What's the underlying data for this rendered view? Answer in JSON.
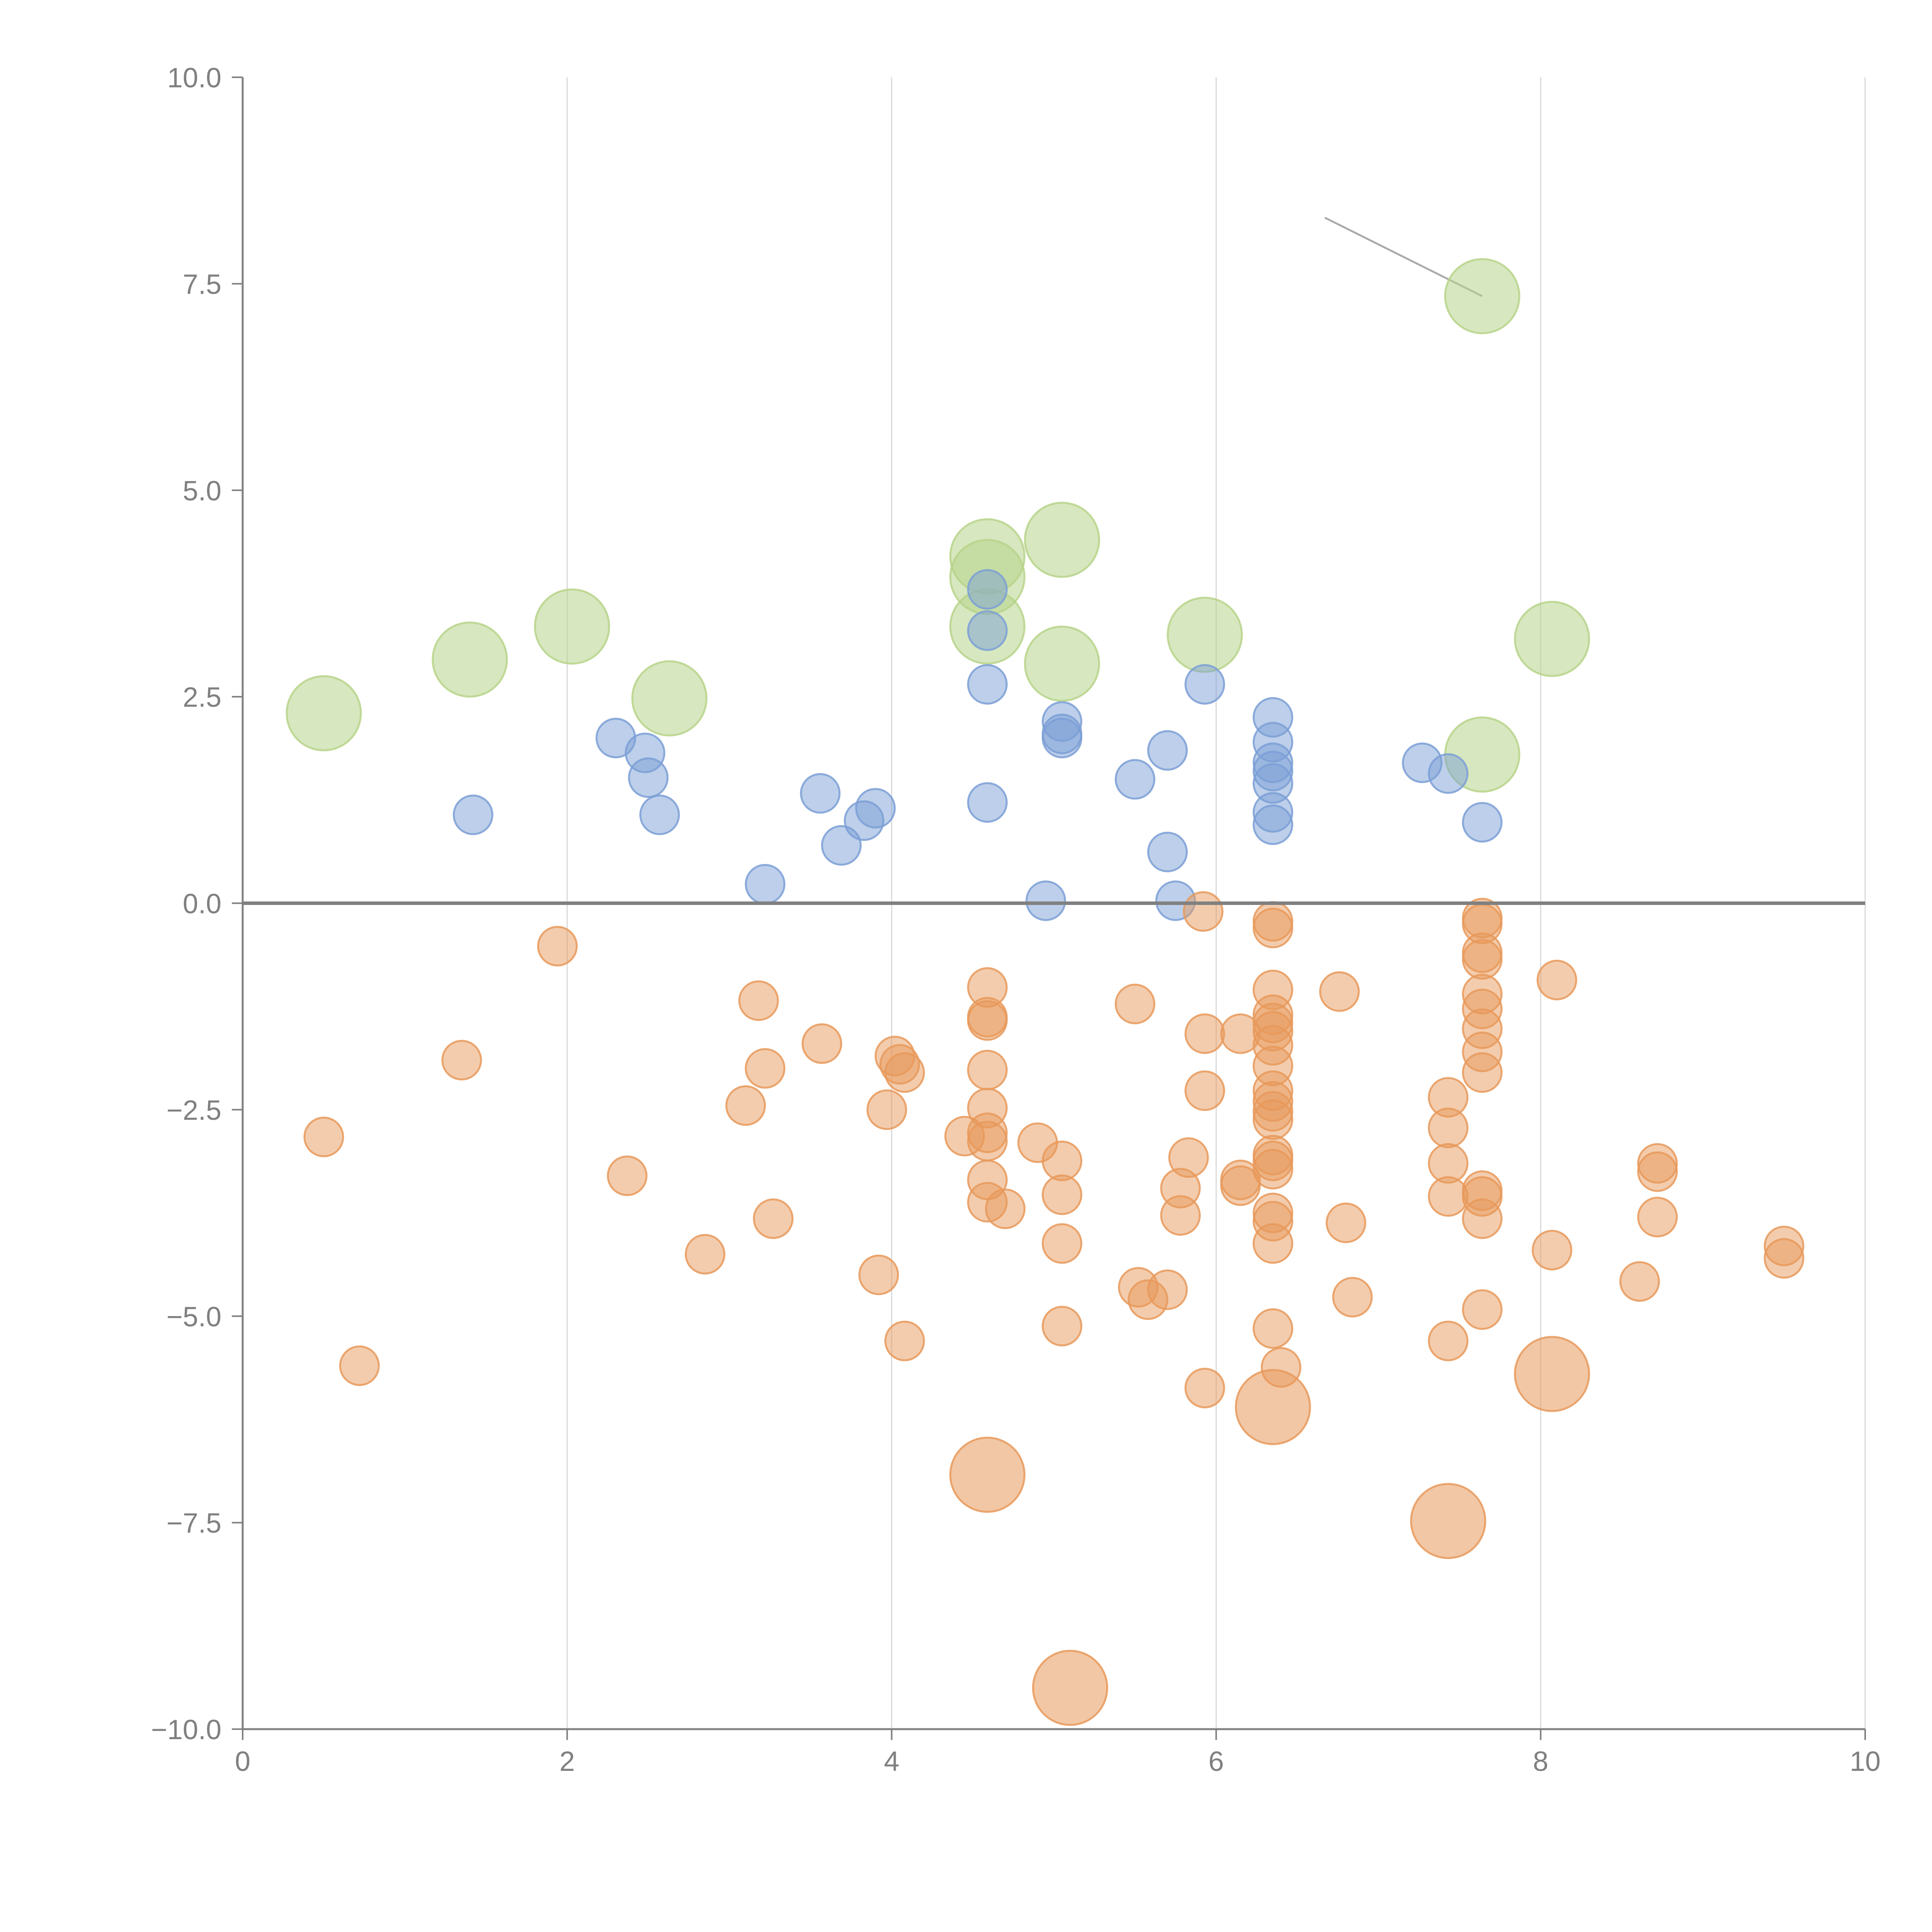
{
  "colors": {
    "positive": "#7b9fd6",
    "negative": "#e8995b",
    "highlight": "#b7d38a",
    "grid": "#d9d9d9",
    "axis": "#808080",
    "leader": "#aaaaaa"
  },
  "chart_data": {
    "type": "scatter",
    "title": "",
    "xlabel": "",
    "ylabel": "",
    "xlim": [
      0,
      10
    ],
    "ylim": [
      -10,
      10
    ],
    "grid": "vertical",
    "legend": "none",
    "reference_line": {
      "axis": "y",
      "value": 0
    },
    "x_ticks": [
      {
        "value": 0,
        "label": "0"
      },
      {
        "value": 2,
        "label": "2"
      },
      {
        "value": 4,
        "label": "4"
      },
      {
        "value": 6,
        "label": "6"
      },
      {
        "value": 8,
        "label": "8"
      },
      {
        "value": 10,
        "label": "10"
      }
    ],
    "y_ticks": [
      {
        "value": 10,
        "label": "10.0"
      },
      {
        "value": 7.5,
        "label": "7.5"
      },
      {
        "value": 5,
        "label": "5.0"
      },
      {
        "value": 2.5,
        "label": "2.5"
      },
      {
        "value": 0,
        "label": "0.0"
      },
      {
        "value": -2.5,
        "label": "−2.5"
      },
      {
        "value": -5,
        "label": "−5.0"
      },
      {
        "value": -7.5,
        "label": "−7.5"
      },
      {
        "value": -10,
        "label": "−10.0"
      }
    ],
    "series": [
      {
        "name": "highlighted",
        "color_key": "highlight",
        "size": "large",
        "points": [
          [
            0.5,
            2.3
          ],
          [
            1.4,
            2.95
          ],
          [
            2.03,
            3.35
          ],
          [
            2.63,
            2.48
          ],
          [
            4.59,
            3.95
          ],
          [
            4.59,
            3.35
          ],
          [
            4.59,
            4.2
          ],
          [
            5.05,
            4.4
          ],
          [
            5.05,
            2.9
          ],
          [
            5.93,
            3.25
          ],
          [
            7.64,
            7.35
          ],
          [
            7.64,
            1.8
          ],
          [
            8.07,
            3.2
          ]
        ]
      },
      {
        "name": "positive",
        "color_key": "positive",
        "size": "small",
        "points": [
          [
            1.42,
            1.07
          ],
          [
            2.3,
            2.0
          ],
          [
            2.48,
            1.82
          ],
          [
            2.5,
            1.52
          ],
          [
            2.57,
            1.07
          ],
          [
            3.22,
            0.23
          ],
          [
            3.56,
            1.33
          ],
          [
            3.69,
            0.7
          ],
          [
            3.83,
            1.0
          ],
          [
            3.9,
            1.15
          ],
          [
            4.59,
            3.8
          ],
          [
            4.59,
            3.3
          ],
          [
            4.59,
            2.65
          ],
          [
            4.59,
            1.22
          ],
          [
            4.95,
            0.03
          ],
          [
            5.05,
            2.2
          ],
          [
            5.05,
            2.05
          ],
          [
            5.05,
            2.0
          ],
          [
            5.5,
            1.5
          ],
          [
            5.7,
            1.85
          ],
          [
            5.7,
            0.62
          ],
          [
            5.75,
            0.03
          ],
          [
            5.93,
            2.65
          ],
          [
            6.35,
            2.25
          ],
          [
            6.35,
            1.95
          ],
          [
            6.35,
            1.7
          ],
          [
            6.35,
            1.6
          ],
          [
            6.35,
            1.45
          ],
          [
            6.35,
            1.1
          ],
          [
            6.35,
            0.95
          ],
          [
            7.27,
            1.7
          ],
          [
            7.43,
            1.57
          ],
          [
            7.64,
            0.98
          ]
        ]
      },
      {
        "name": "negative",
        "color_key": "negative",
        "size": "small",
        "points": [
          [
            0.5,
            -2.83
          ],
          [
            0.72,
            -5.6
          ],
          [
            1.35,
            -1.9
          ],
          [
            1.94,
            -0.52
          ],
          [
            2.37,
            -3.3
          ],
          [
            2.85,
            -4.25
          ],
          [
            3.1,
            -2.45
          ],
          [
            3.18,
            -1.18
          ],
          [
            3.22,
            -2.0
          ],
          [
            3.27,
            -3.82
          ],
          [
            3.57,
            -1.7
          ],
          [
            3.92,
            -4.5
          ],
          [
            3.97,
            -2.5
          ],
          [
            4.02,
            -1.85
          ],
          [
            4.05,
            -1.95
          ],
          [
            4.08,
            -2.05
          ],
          [
            4.08,
            -5.3
          ],
          [
            4.45,
            -2.82
          ],
          [
            4.59,
            -1.02
          ],
          [
            4.59,
            -1.38
          ],
          [
            4.59,
            -1.42
          ],
          [
            4.59,
            -2.02
          ],
          [
            4.59,
            -2.48
          ],
          [
            4.59,
            -2.78
          ],
          [
            4.59,
            -2.88
          ],
          [
            4.59,
            -3.35
          ],
          [
            4.59,
            -3.62
          ],
          [
            4.7,
            -3.7
          ],
          [
            4.9,
            -2.9
          ],
          [
            5.05,
            -3.12
          ],
          [
            5.05,
            -3.53
          ],
          [
            5.05,
            -4.12
          ],
          [
            5.05,
            -5.12
          ],
          [
            5.5,
            -1.22
          ],
          [
            5.52,
            -4.65
          ],
          [
            5.58,
            -4.8
          ],
          [
            5.7,
            -4.68
          ],
          [
            5.78,
            -3.45
          ],
          [
            5.78,
            -3.78
          ],
          [
            5.83,
            -3.08
          ],
          [
            5.92,
            -0.1
          ],
          [
            5.93,
            -1.58
          ],
          [
            5.93,
            -2.27
          ],
          [
            5.93,
            -5.87
          ],
          [
            6.15,
            -1.58
          ],
          [
            6.15,
            -3.35
          ],
          [
            6.15,
            -3.42
          ],
          [
            6.35,
            -0.22
          ],
          [
            6.35,
            -0.3
          ],
          [
            6.35,
            -1.05
          ],
          [
            6.35,
            -1.35
          ],
          [
            6.35,
            -1.45
          ],
          [
            6.35,
            -1.55
          ],
          [
            6.35,
            -1.72
          ],
          [
            6.35,
            -1.97
          ],
          [
            6.35,
            -2.27
          ],
          [
            6.35,
            -2.4
          ],
          [
            6.35,
            -2.52
          ],
          [
            6.35,
            -2.62
          ],
          [
            6.35,
            -3.05
          ],
          [
            6.35,
            -3.12
          ],
          [
            6.35,
            -3.22
          ],
          [
            6.35,
            -3.75
          ],
          [
            6.35,
            -3.85
          ],
          [
            6.35,
            -4.12
          ],
          [
            6.35,
            -5.15
          ],
          [
            6.4,
            -5.62
          ],
          [
            6.76,
            -1.07
          ],
          [
            6.8,
            -3.87
          ],
          [
            6.84,
            -4.77
          ],
          [
            7.43,
            -2.35
          ],
          [
            7.43,
            -2.72
          ],
          [
            7.43,
            -3.15
          ],
          [
            7.43,
            -3.55
          ],
          [
            7.43,
            -5.3
          ],
          [
            7.64,
            -0.18
          ],
          [
            7.64,
            -0.25
          ],
          [
            7.64,
            -0.6
          ],
          [
            7.64,
            -0.68
          ],
          [
            7.64,
            -1.1
          ],
          [
            7.64,
            -1.28
          ],
          [
            7.64,
            -1.52
          ],
          [
            7.64,
            -1.8
          ],
          [
            7.64,
            -2.05
          ],
          [
            7.64,
            -3.48
          ],
          [
            7.64,
            -3.55
          ],
          [
            7.64,
            -3.82
          ],
          [
            7.64,
            -4.92
          ],
          [
            8.1,
            -0.93
          ],
          [
            8.07,
            -4.2
          ],
          [
            8.61,
            -4.58
          ],
          [
            8.72,
            -3.15
          ],
          [
            8.72,
            -3.25
          ],
          [
            8.72,
            -3.8
          ],
          [
            9.5,
            -4.15
          ],
          [
            9.5,
            -4.3
          ]
        ]
      },
      {
        "name": "negative-highlighted",
        "color_key": "negative",
        "size": "large",
        "points": [
          [
            4.59,
            -6.92
          ],
          [
            5.1,
            -9.5
          ],
          [
            6.35,
            -6.1
          ],
          [
            7.43,
            -7.48
          ],
          [
            8.07,
            -5.7
          ]
        ]
      }
    ],
    "annotations": [
      {
        "text": "",
        "x": 7.64,
        "y": 7.35,
        "leader_from": [
          6.67,
          8.3
        ]
      }
    ]
  }
}
